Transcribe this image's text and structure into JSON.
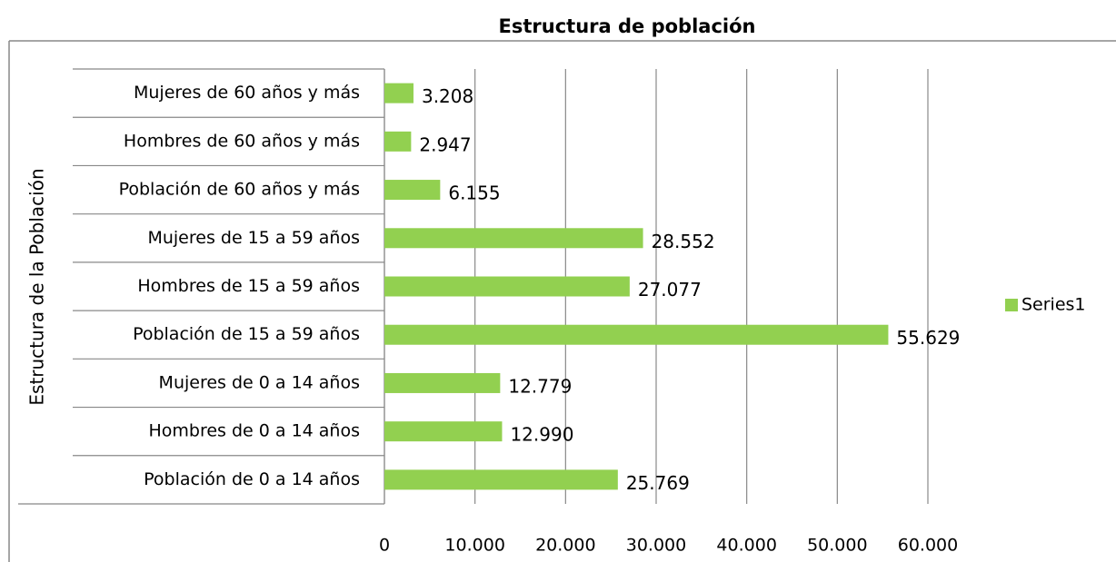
{
  "chart_data": {
    "type": "bar",
    "orientation": "horizontal",
    "title": "Estructura de población",
    "y_label": "Estructura de la Población",
    "categories": [
      "Población de 0 a 14 años",
      "Hombres de 0 a 14 años",
      "Mujeres de 0 a 14 años",
      "Población de 15 a 59 años",
      "Hombres de 15 a 59 años",
      "Mujeres de 15 a 59 años",
      "Población de 60 años y más",
      "Hombres de 60 años y más",
      "Mujeres de 60 años y más"
    ],
    "series": [
      {
        "name": "Series1",
        "color": "#92d050",
        "values": [
          25769,
          12990,
          12779,
          55629,
          27077,
          28552,
          6155,
          2947,
          3208
        ],
        "value_labels": [
          "25.769",
          "12.990",
          "12.779",
          "55.629",
          "27.077",
          "28.552",
          "6.155",
          "2.947",
          "3.208"
        ]
      }
    ],
    "xlim": [
      0,
      60000
    ],
    "xticks": [
      0,
      {
        "value": 10000,
        "label": "10.000"
      },
      {
        "value": 20000,
        "label": "20.000"
      },
      {
        "value": 30000,
        "label": "30.000"
      },
      {
        "value": 40000,
        "label": "40.000"
      },
      {
        "value": 50000,
        "label": "50.000"
      },
      {
        "value": 60000,
        "label": "60.000"
      }
    ],
    "grid": true,
    "legend": "right"
  }
}
